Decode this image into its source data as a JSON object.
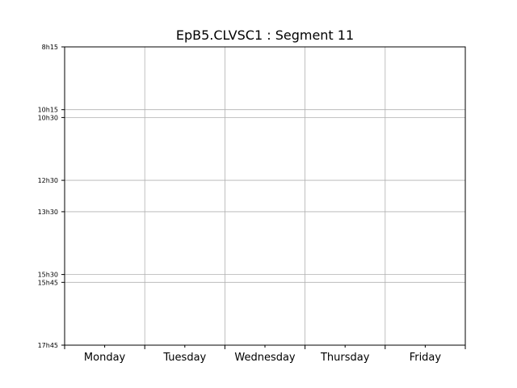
{
  "chart_data": {
    "type": "table",
    "title": "EpB5.CLVSC1 : Segment 11",
    "xlabel": "",
    "ylabel": "",
    "categories": [
      "Monday",
      "Tuesday",
      "Wednesday",
      "Thursday",
      "Friday"
    ],
    "y_ticks": [
      {
        "label": "8h15",
        "value": 8.25
      },
      {
        "label": "10h15",
        "value": 10.25
      },
      {
        "label": "10h30",
        "value": 10.5
      },
      {
        "label": "12h30",
        "value": 12.5
      },
      {
        "label": "13h30",
        "value": 13.5
      },
      {
        "label": "15h30",
        "value": 15.5
      },
      {
        "label": "15h45",
        "value": 15.75
      },
      {
        "label": "17h45",
        "value": 17.75
      }
    ],
    "ylim": [
      17.75,
      8.25
    ],
    "y_inverted": true,
    "grid": true,
    "series": []
  }
}
